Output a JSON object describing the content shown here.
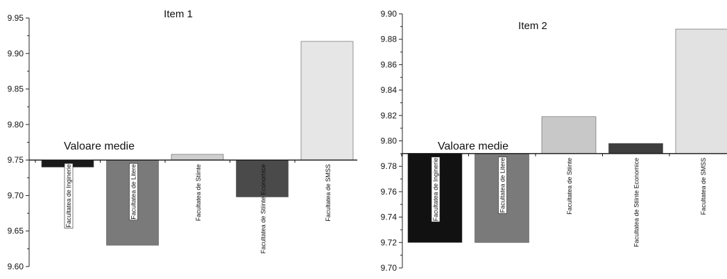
{
  "chart_data": [
    {
      "type": "bar",
      "title": "Item 1",
      "reference_label": "Valoare medie",
      "reference_value": 9.75,
      "ylim": [
        9.6,
        9.95
      ],
      "yticks": [
        "9.60",
        "9.65",
        "9.70",
        "9.75",
        "9.80",
        "9.85",
        "9.90",
        "9.95"
      ],
      "categories": [
        "Facultatea de Inginerie",
        "Facultatea de Litere",
        "Facultatea de Stiinte",
        "Facultatea de Stiinte Economice",
        "Facultatea de SMSS"
      ],
      "values": [
        9.74,
        9.63,
        9.758,
        9.698,
        9.917
      ],
      "colors": [
        "#1a1a1a",
        "#7a7a7a",
        "#cfcfcf",
        "#4a4a4a",
        "#e6e6e6"
      ],
      "boxed_labels": [
        true,
        true,
        false,
        false,
        false
      ]
    },
    {
      "type": "bar",
      "title": "Item 2",
      "reference_label": "Valoare medie",
      "reference_value": 9.79,
      "ylim": [
        9.7,
        9.9
      ],
      "yticks": [
        "9.70",
        "9.72",
        "9.74",
        "9.76",
        "9.78",
        "9.80",
        "9.82",
        "9.84",
        "9.86",
        "9.88",
        "9.90"
      ],
      "categories": [
        "Facultatea de Inginerie",
        "Facultatea de Litere",
        "Facultatea de Stiinte",
        "Facultatea de Stiinte Economice",
        "Facultatea de SMSS"
      ],
      "values": [
        9.72,
        9.72,
        9.819,
        9.798,
        9.888
      ],
      "colors": [
        "#111111",
        "#7a7a7a",
        "#c8c8c8",
        "#3e3e3e",
        "#e2e2e2"
      ],
      "boxed_labels": [
        true,
        true,
        false,
        false,
        false
      ]
    }
  ]
}
